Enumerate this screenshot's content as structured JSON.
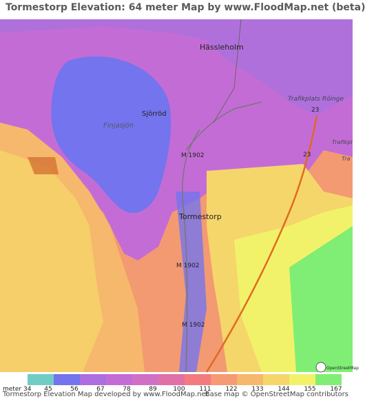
{
  "header": {
    "title": "Tormestorp Elevation: 64 meter Map by www.FloodMap.net (beta)"
  },
  "map": {
    "labels": [
      "Hässleholm",
      "Sjörröd",
      "Finjasjön",
      "Trafikplats Röinge",
      "23",
      "23",
      "M 1902",
      "M 1902",
      "M 1902",
      "Tormestorp",
      "Trafikpl",
      "Tra"
    ],
    "attribution_logo": "OpenStreetMap"
  },
  "legend": {
    "unit": "meter",
    "values": [
      34,
      45,
      56,
      67,
      78,
      89,
      100,
      111,
      122,
      133,
      144,
      155,
      167
    ],
    "colors": [
      "#6fcdc6",
      "#7474ee",
      "#ad6ee0",
      "#c46cd6",
      "#d070c4",
      "#e070a6",
      "#f37a7e",
      "#f59a72",
      "#f6b86c",
      "#f5d66a",
      "#f2f26a",
      "#80ee74"
    ]
  },
  "footer": {
    "left": "Tormestorp Elevation Map developed by www.FloodMap.net",
    "right": "Base map © OpenStreetMap contributors"
  }
}
